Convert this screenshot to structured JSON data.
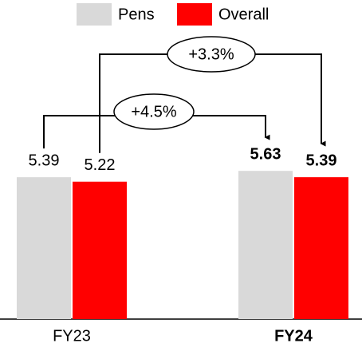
{
  "chart_data": {
    "type": "bar",
    "categories": [
      "FY23",
      "FY24"
    ],
    "series": [
      {
        "name": "Pens",
        "color": "#d9d9d9",
        "values": [
          5.39,
          5.63
        ]
      },
      {
        "name": "Overall",
        "color": "#ff0000",
        "values": [
          5.22,
          5.39
        ]
      }
    ],
    "annotations": [
      "+4.5%",
      "+3.3%"
    ]
  }
}
